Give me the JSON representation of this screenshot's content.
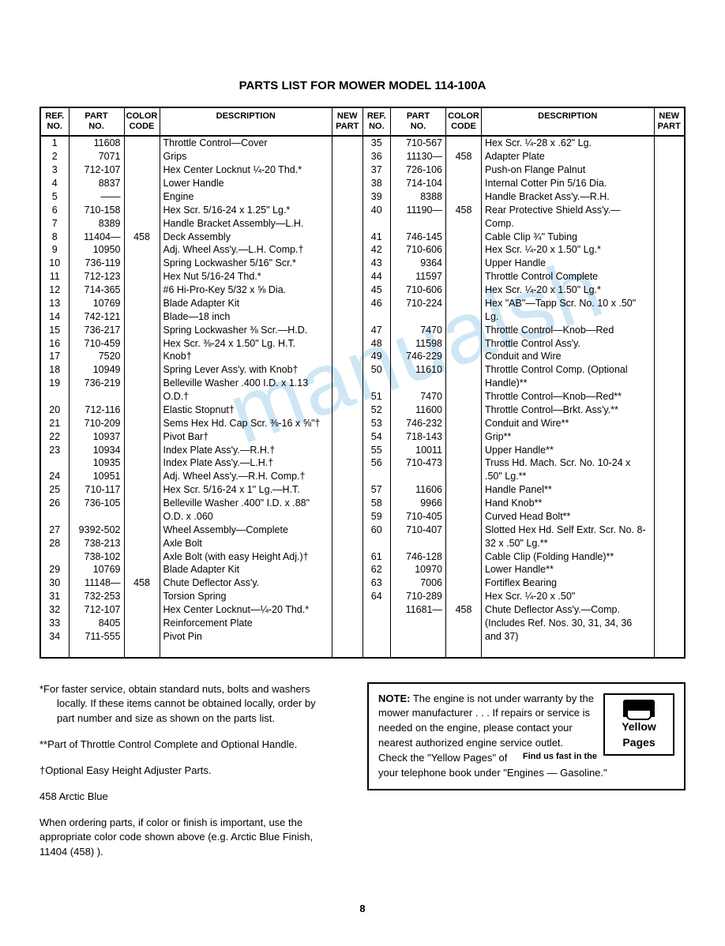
{
  "title": "PARTS LIST FOR MOWER MODEL 114-100A",
  "pagenum": "8",
  "columns": {
    "ref": "REF.\nNO.",
    "part": "PART\nNO.",
    "color": "COLOR\nCODE",
    "desc": "DESCRIPTION",
    "new": "NEW\nPART"
  },
  "left_rows": [
    {
      "ref": "1",
      "part": "11608",
      "color": "",
      "desc": "Throttle Control—Cover"
    },
    {
      "ref": "2",
      "part": "7071",
      "color": "",
      "desc": "Grips"
    },
    {
      "ref": "3",
      "part": "712-107",
      "color": "",
      "desc": "Hex Center Locknut ¼-20 Thd.*"
    },
    {
      "ref": "4",
      "part": "8837",
      "color": "",
      "desc": "Lower Handle"
    },
    {
      "ref": "5",
      "part": "——",
      "color": "",
      "desc": "Engine"
    },
    {
      "ref": "6",
      "part": "710-158",
      "color": "",
      "desc": "Hex Scr. 5/16-24 x 1.25\" Lg.*"
    },
    {
      "ref": "7",
      "part": "8389",
      "color": "",
      "desc": "Handle Bracket Assembly—L.H."
    },
    {
      "ref": "8",
      "part": "11404—",
      "color": "458",
      "desc": "Deck Assembly"
    },
    {
      "ref": "9",
      "part": "10950",
      "color": "",
      "desc": "Adj. Wheel Ass'y.—L.H. Comp.†"
    },
    {
      "ref": "10",
      "part": "736-119",
      "color": "",
      "desc": "Spring Lockwasher 5/16\" Scr.*"
    },
    {
      "ref": "11",
      "part": "712-123",
      "color": "",
      "desc": "Hex Nut 5/16-24 Thd.*"
    },
    {
      "ref": "12",
      "part": "714-365",
      "color": "",
      "desc": "#6 Hi-Pro-Key 5/32 x ⅝ Dia."
    },
    {
      "ref": "13",
      "part": "10769",
      "color": "",
      "desc": "Blade Adapter Kit"
    },
    {
      "ref": "14",
      "part": "742-121",
      "color": "",
      "desc": "Blade—18 inch"
    },
    {
      "ref": "15",
      "part": "736-217",
      "color": "",
      "desc": "Spring Lockwasher ⅜ Scr.—H.D."
    },
    {
      "ref": "16",
      "part": "710-459",
      "color": "",
      "desc": "Hex Scr. ⅜-24 x 1.50\" Lg. H.T."
    },
    {
      "ref": "17",
      "part": "7520",
      "color": "",
      "desc": "Knob†"
    },
    {
      "ref": "18",
      "part": "10949",
      "color": "",
      "desc": "Spring Lever Ass'y. with Knob†"
    },
    {
      "ref": "19",
      "part": "736-219",
      "color": "",
      "desc": "Belleville Washer .400 I.D. x 1.13 O.D.†"
    },
    {
      "ref": "20",
      "part": "712-116",
      "color": "",
      "desc": "Elastic Stopnut†"
    },
    {
      "ref": "21",
      "part": "710-209",
      "color": "",
      "desc": "Sems Hex Hd. Cap Scr. ⅜-16 x ⅝\"†"
    },
    {
      "ref": "22",
      "part": "10937",
      "color": "",
      "desc": "Pivot Bar†"
    },
    {
      "ref": "23",
      "part": "10934",
      "color": "",
      "desc": "Index Plate Ass'y.—R.H.†"
    },
    {
      "ref": "",
      "part": "10935",
      "color": "",
      "desc": "Index Plate Ass'y.—L.H.†"
    },
    {
      "ref": "24",
      "part": "10951",
      "color": "",
      "desc": "Adj. Wheel Ass'y.—R.H. Comp.†"
    },
    {
      "ref": "25",
      "part": "710-117",
      "color": "",
      "desc": "Hex Scr. 5/16-24 x 1\" Lg.—H.T."
    },
    {
      "ref": "26",
      "part": "736-105",
      "color": "",
      "desc": "Belleville Washer .400\" I.D. x .88\" O.D. x .060"
    },
    {
      "ref": "27",
      "part": "9392-502",
      "color": "",
      "desc": "Wheel Assembly—Complete"
    },
    {
      "ref": "28",
      "part": "738-213",
      "color": "",
      "desc": "Axle Bolt"
    },
    {
      "ref": "",
      "part": "738-102",
      "color": "",
      "desc": "Axle Bolt (with easy Height Adj.)†"
    },
    {
      "ref": "29",
      "part": "10769",
      "color": "",
      "desc": "Blade Adapter Kit"
    },
    {
      "ref": "30",
      "part": "11148—",
      "color": "458",
      "desc": "Chute Deflector Ass'y."
    },
    {
      "ref": "31",
      "part": "732-253",
      "color": "",
      "desc": "Torsion Spring"
    },
    {
      "ref": "32",
      "part": "712-107",
      "color": "",
      "desc": "Hex Center Locknut—¼-20 Thd.*"
    },
    {
      "ref": "33",
      "part": "8405",
      "color": "",
      "desc": "Reinforcement Plate"
    },
    {
      "ref": "34",
      "part": "711-555",
      "color": "",
      "desc": "Pivot Pin"
    }
  ],
  "right_rows": [
    {
      "ref": "35",
      "part": "710-567",
      "color": "",
      "desc": "Hex Scr. ¼-28 x .62\" Lg."
    },
    {
      "ref": "36",
      "part": "11130—",
      "color": "458",
      "desc": "Adapter Plate"
    },
    {
      "ref": "37",
      "part": "726-106",
      "color": "",
      "desc": "Push-on Flange Palnut"
    },
    {
      "ref": "38",
      "part": "714-104",
      "color": "",
      "desc": "Internal Cotter Pin 5/16 Dia."
    },
    {
      "ref": "39",
      "part": "8388",
      "color": "",
      "desc": "Handle Bracket Ass'y.—R.H."
    },
    {
      "ref": "40",
      "part": "11190—",
      "color": "458",
      "desc": "Rear Protective Shield Ass'y.— Comp."
    },
    {
      "ref": "41",
      "part": "746-145",
      "color": "",
      "desc": "Cable Clip ¾\" Tubing"
    },
    {
      "ref": "42",
      "part": "710-606",
      "color": "",
      "desc": "Hex Scr. ¼-20 x 1.50\" Lg.*"
    },
    {
      "ref": "43",
      "part": "9364",
      "color": "",
      "desc": "Upper Handle"
    },
    {
      "ref": "44",
      "part": "11597",
      "color": "",
      "desc": "Throttle Control Complete"
    },
    {
      "ref": "45",
      "part": "710-606",
      "color": "",
      "desc": "Hex Scr. ¼-20 x 1.50\" Lg.*"
    },
    {
      "ref": "46",
      "part": "710-224",
      "color": "",
      "desc": "Hex \"AB\"—Tapp Scr. No. 10 x .50\" Lg."
    },
    {
      "ref": "47",
      "part": "7470",
      "color": "",
      "desc": "Throttle Control—Knob—Red"
    },
    {
      "ref": "48",
      "part": "11598",
      "color": "",
      "desc": "Throttle Control Ass'y."
    },
    {
      "ref": "49",
      "part": "746-229",
      "color": "",
      "desc": "Conduit and Wire"
    },
    {
      "ref": "50",
      "part": "11610",
      "color": "",
      "desc": "Throttle Control Comp. (Optional Handle)**"
    },
    {
      "ref": "51",
      "part": "7470",
      "color": "",
      "desc": "Throttle Control—Knob—Red**"
    },
    {
      "ref": "52",
      "part": "11600",
      "color": "",
      "desc": "Throttle Control—Brkt. Ass'y.**"
    },
    {
      "ref": "53",
      "part": "746-232",
      "color": "",
      "desc": "Conduit and Wire**"
    },
    {
      "ref": "54",
      "part": "718-143",
      "color": "",
      "desc": "Grip**"
    },
    {
      "ref": "55",
      "part": "10011",
      "color": "",
      "desc": "Upper Handle**"
    },
    {
      "ref": "56",
      "part": "710-473",
      "color": "",
      "desc": "Truss Hd. Mach. Scr. No. 10-24 x .50\" Lg.**"
    },
    {
      "ref": "57",
      "part": "11606",
      "color": "",
      "desc": "Handle Panel**"
    },
    {
      "ref": "58",
      "part": "9966",
      "color": "",
      "desc": "Hand Knob**"
    },
    {
      "ref": "59",
      "part": "710-405",
      "color": "",
      "desc": "Curved Head Bolt**"
    },
    {
      "ref": "60",
      "part": "710-407",
      "color": "",
      "desc": "Slotted Hex Hd. Self Extr. Scr. No. 8-32 x .50\" Lg.**"
    },
    {
      "ref": "61",
      "part": "746-128",
      "color": "",
      "desc": "Cable Clip (Folding Handle)**"
    },
    {
      "ref": "62",
      "part": "10970",
      "color": "",
      "desc": "Lower Handle**"
    },
    {
      "ref": "63",
      "part": "7006",
      "color": "",
      "desc": "Fortiflex Bearing"
    },
    {
      "ref": "64",
      "part": "710-289",
      "color": "",
      "desc": "Hex Scr. ¼-20 x .50\""
    },
    {
      "ref": "",
      "part": "11681—",
      "color": "458",
      "desc": "Chute Deflector Ass'y.—Comp. (Includes Ref. Nos. 30, 31, 34, 36 and 37)"
    }
  ],
  "footnotes": {
    "star": "*For faster service, obtain standard nuts, bolts and washers locally. If these items cannot be obtained locally, order by part number and size as shown on the parts list.",
    "dstar": "**Part of Throttle Control Complete and Optional Handle.",
    "dagger": "†Optional Easy Height Adjuster Parts.",
    "color": "458 Arctic Blue",
    "ordering": "When ordering parts, if color or finish is important, use the appropriate color code shown above (e.g. Arctic Blue Finish, 11404 (458) )."
  },
  "note_box": {
    "note_label": "NOTE:",
    "note_text": "The engine is not under warranty by the mower manufacturer . . . If repairs or service is needed on the engine, please contact your nearest authorized engine service outlet.",
    "find_us": "Find us fast in the",
    "check": "Check the \"Yellow Pages\" of your telephone book under \"Engines — Gasoline.\"",
    "yp1": "Yellow",
    "yp2": "Pages"
  }
}
